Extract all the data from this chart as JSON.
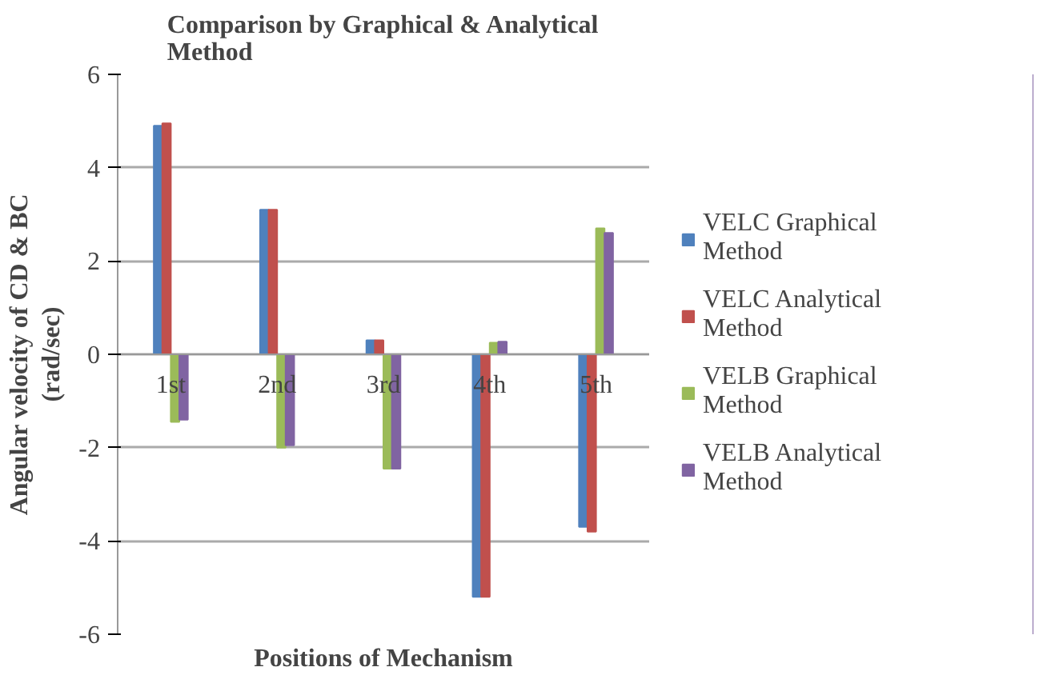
{
  "chart_data": {
    "type": "bar",
    "title": "Comparison by Graphical & Analytical\nMethod",
    "xlabel": "Positions of Mechanism",
    "ylabel": "Angular velocity of CD & BC\n(rad/sec)",
    "categories": [
      "1st",
      "2nd",
      "3rd",
      "4th",
      "5th"
    ],
    "series": [
      {
        "name": "VELC Graphical\nMethod",
        "color": "#4f81bd",
        "values": [
          4.9,
          3.1,
          0.3,
          -5.2,
          -3.7
        ]
      },
      {
        "name": "VELC Analytical\nMethod",
        "color": "#c0504d",
        "values": [
          4.95,
          3.1,
          0.3,
          -5.2,
          -3.8
        ]
      },
      {
        "name": "VELB Graphical\nMethod",
        "color": "#9bbb59",
        "values": [
          -1.45,
          -2.0,
          -2.45,
          0.25,
          2.7
        ]
      },
      {
        "name": "VELB Analytical\nMethod",
        "color": "#8064a2",
        "values": [
          -1.4,
          -1.95,
          -2.45,
          0.27,
          2.6
        ]
      }
    ],
    "ylim": [
      -6,
      6
    ],
    "yticks": [
      -6,
      -4,
      -2,
      0,
      2,
      4,
      6
    ],
    "grid": "y",
    "legend": "right"
  }
}
